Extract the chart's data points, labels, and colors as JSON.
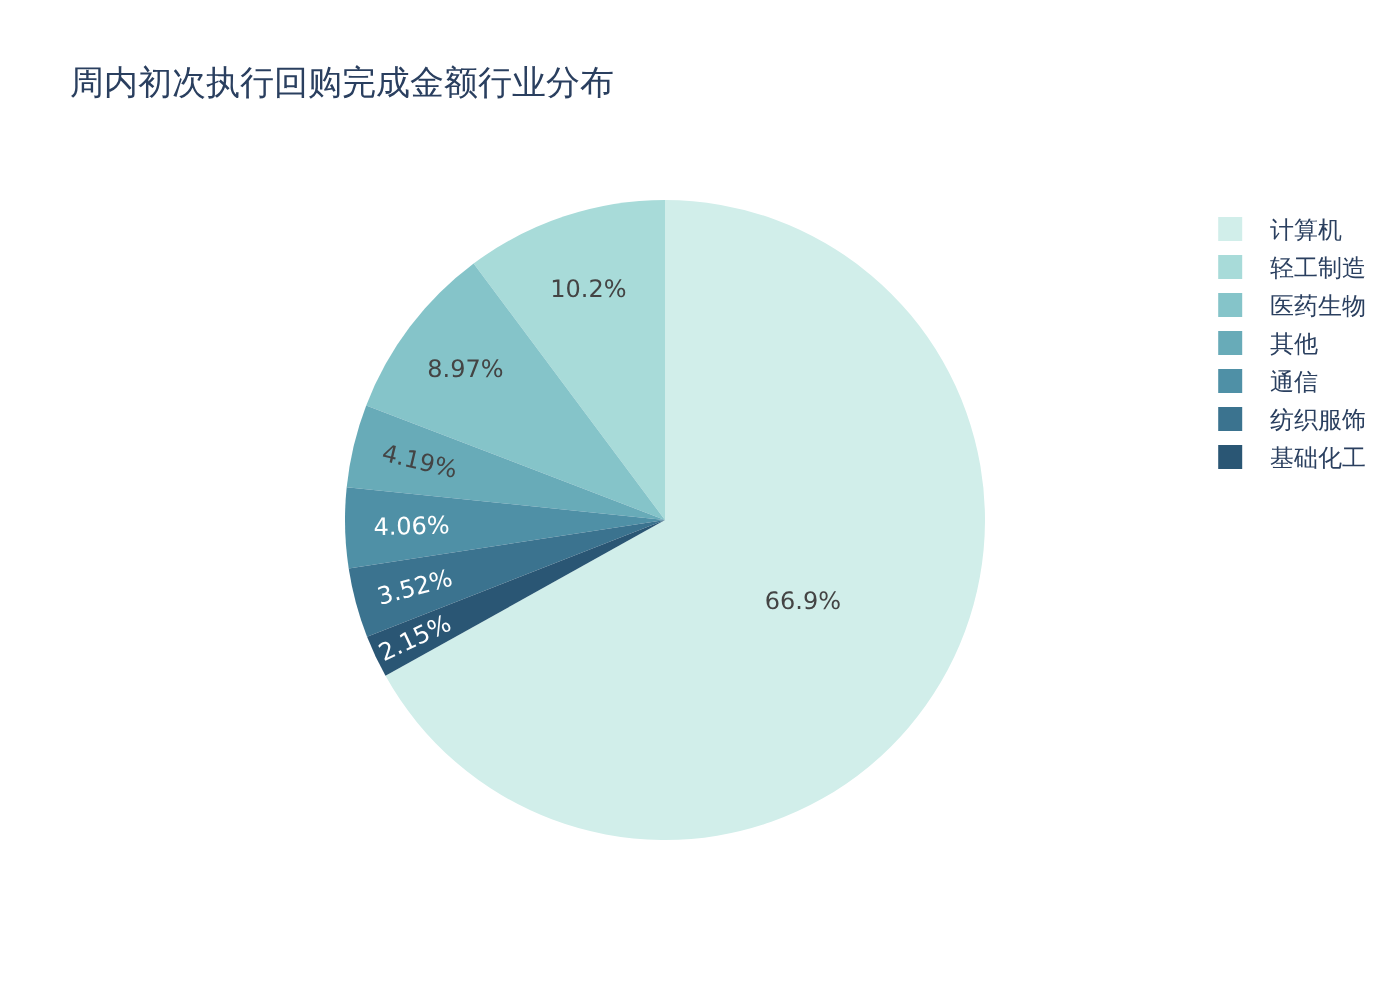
{
  "chart_data": {
    "type": "pie",
    "title": "周内初次执行回购完成金额行业分布",
    "categories": [
      "计算机",
      "轻工制造",
      "医药生物",
      "其他",
      "通信",
      "纺织服饰",
      "基础化工"
    ],
    "values": [
      66.9,
      10.2,
      8.97,
      4.19,
      4.06,
      3.52,
      2.15
    ],
    "value_labels": [
      "66.9%",
      "10.2%",
      "8.97%",
      "4.19%",
      "4.06%",
      "3.52%",
      "2.15%"
    ],
    "colors": [
      "#d1eeea",
      "#a8dbd9",
      "#85c4c9",
      "#68abb8",
      "#4f90a6",
      "#3b738f",
      "#2a5674"
    ],
    "legend": "top right"
  }
}
